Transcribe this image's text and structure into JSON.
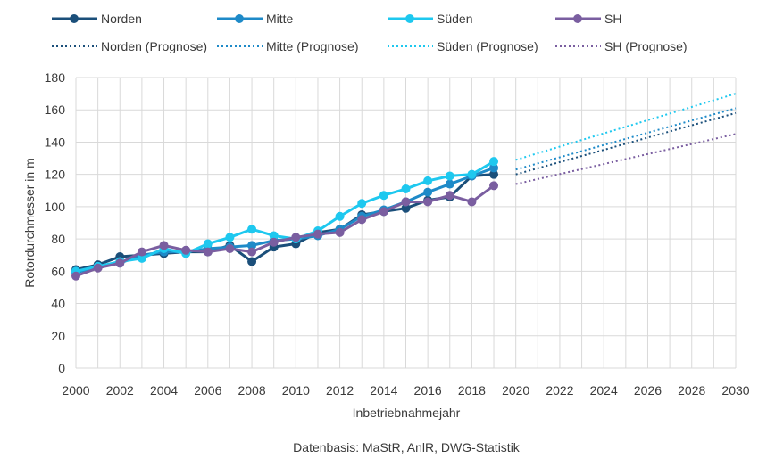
{
  "chart_data": {
    "type": "line",
    "xlabel": "Inbetriebnahmejahr",
    "ylabel": "Rotordurchmesser in m",
    "source": "Datenbasis: MaStR, AnlR, DWG-Statistik",
    "xlim": [
      2000,
      2030
    ],
    "ylim": [
      0,
      180
    ],
    "x_ticks": [
      "2000",
      "2002",
      "2004",
      "2006",
      "2008",
      "2010",
      "2012",
      "2014",
      "2016",
      "2018",
      "2020",
      "2022",
      "2024",
      "2026",
      "2028",
      "2030"
    ],
    "y_ticks": [
      "0",
      "20",
      "40",
      "60",
      "80",
      "100",
      "120",
      "140",
      "160",
      "180"
    ],
    "grid": true,
    "legend_position": "top",
    "x": [
      2000,
      2001,
      2002,
      2003,
      2004,
      2005,
      2006,
      2007,
      2008,
      2009,
      2010,
      2011,
      2012,
      2013,
      2014,
      2015,
      2016,
      2017,
      2018,
      2019
    ],
    "series": [
      {
        "name": "Norden",
        "color": "#1b4f7a",
        "values": [
          61,
          64,
          69,
          70,
          71,
          72,
          72,
          76,
          66,
          75,
          77,
          84,
          86,
          95,
          97,
          99,
          104,
          106,
          119,
          120
        ]
      },
      {
        "name": "Mitte",
        "color": "#1e8ac8",
        "values": [
          59,
          63,
          65,
          70,
          72,
          72,
          74,
          75,
          76,
          79,
          80,
          82,
          86,
          94,
          98,
          103,
          109,
          114,
          119,
          124
        ]
      },
      {
        "name": "Süden",
        "color": "#1ec8ef",
        "values": [
          60,
          63,
          66,
          68,
          74,
          71,
          77,
          81,
          86,
          82,
          80,
          85,
          94,
          102,
          107,
          111,
          116,
          119,
          120,
          128
        ]
      },
      {
        "name": "SH",
        "color": "#7a5ea0",
        "values": [
          57,
          62,
          65,
          72,
          76,
          73,
          72,
          74,
          72,
          78,
          81,
          83,
          84,
          92,
          97,
          103,
          103,
          107,
          103,
          113
        ]
      }
    ],
    "forecast_series": [
      {
        "name": "Norden (Prognose)",
        "color": "#1b4f7a",
        "x": [
          2020,
          2030
        ],
        "values": [
          120,
          158
        ]
      },
      {
        "name": "Mitte (Prognose)",
        "color": "#1e8ac8",
        "x": [
          2020,
          2030
        ],
        "values": [
          123,
          161
        ]
      },
      {
        "name": "Süden (Prognose)",
        "color": "#1ec8ef",
        "x": [
          2020,
          2030
        ],
        "values": [
          129,
          170
        ]
      },
      {
        "name": "SH (Prognose)",
        "color": "#7a5ea0",
        "x": [
          2020,
          2030
        ],
        "values": [
          114,
          145
        ]
      }
    ]
  }
}
